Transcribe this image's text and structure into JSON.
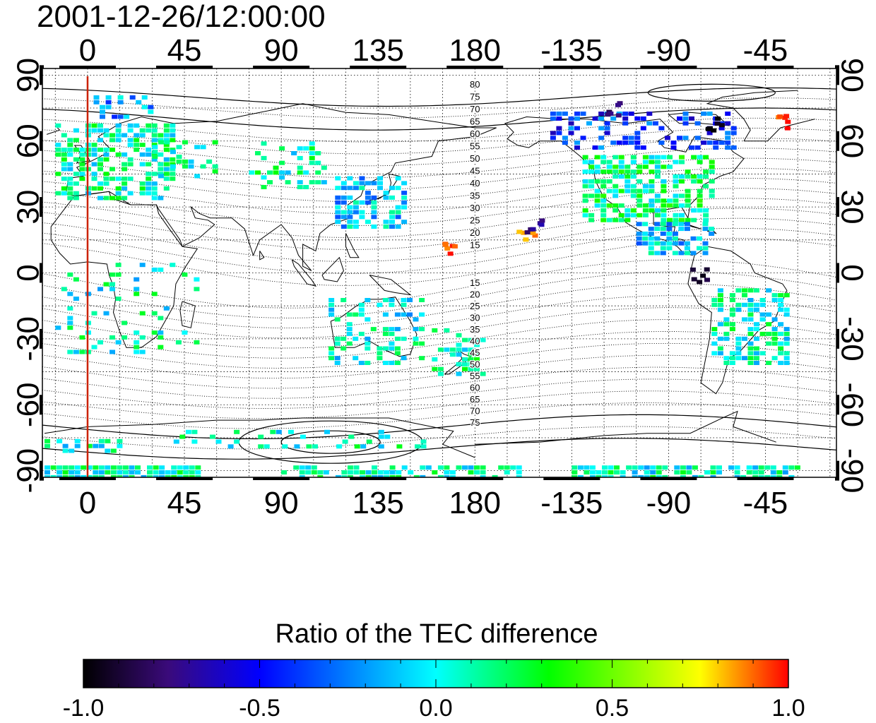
{
  "title": "2001-12-26/12:00:00",
  "axes": {
    "x_ticks": [
      {
        "lon": 0,
        "label": "0"
      },
      {
        "lon": 45,
        "label": "45"
      },
      {
        "lon": 90,
        "label": "90"
      },
      {
        "lon": 135,
        "label": "135"
      },
      {
        "lon": 180,
        "label": "180"
      },
      {
        "lon": 225,
        "label": "-135"
      },
      {
        "lon": 270,
        "label": "-90"
      },
      {
        "lon": 315,
        "label": "-45"
      }
    ],
    "y_ticks": [
      {
        "lat": 90,
        "label": "90"
      },
      {
        "lat": 60,
        "label": "60"
      },
      {
        "lat": 30,
        "label": "30"
      },
      {
        "lat": 0,
        "label": "0"
      },
      {
        "lat": -30,
        "label": "-30"
      },
      {
        "lat": -60,
        "label": "-60"
      },
      {
        "lat": -90,
        "label": "-90"
      }
    ],
    "right_y_ticks": [
      {
        "lat": 90,
        "label": "90"
      },
      {
        "lat": 60,
        "label": "60"
      },
      {
        "lat": 30,
        "label": "30"
      },
      {
        "lat": 0,
        "label": "0"
      },
      {
        "lat": -30,
        "label": "-30"
      },
      {
        "lat": -60,
        "label": "-60"
      },
      {
        "lat": -90,
        "label": "-90"
      }
    ],
    "lon_range": [
      -21,
      348
    ],
    "lat_range": [
      -93,
      93
    ]
  },
  "meridian_marker": {
    "lon": 0,
    "color": "#cc2200"
  },
  "contour_labels_north": [
    "80",
    "75",
    "70",
    "65",
    "60",
    "55",
    "50",
    "45",
    "40",
    "35",
    "30",
    "25",
    "20",
    "15"
  ],
  "contour_labels_south": [
    "15",
    "20",
    "25",
    "30",
    "35",
    "40",
    "45",
    "50",
    "55",
    "60",
    "65",
    "70",
    "75"
  ],
  "colorbar": {
    "title": "Ratio of the TEC difference",
    "min": -1.0,
    "max": 1.0,
    "tick_labels": [
      "-1.0",
      "-0.5",
      "0.0",
      "0.5",
      "1.0"
    ],
    "tick_values": [
      -1.0,
      -0.5,
      0.0,
      0.5,
      1.0
    ],
    "colors": [
      "#000000",
      "#3a0a7a",
      "#0000ff",
      "#00ffff",
      "#00ff00",
      "#ffff00",
      "#ff0000"
    ]
  }
}
